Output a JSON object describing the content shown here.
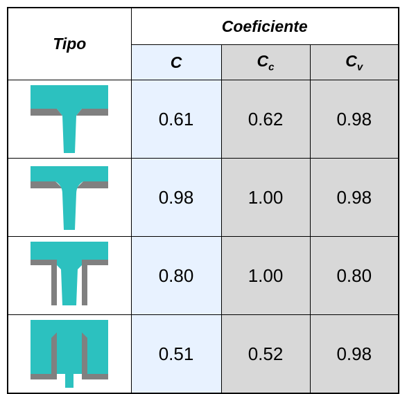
{
  "table": {
    "tipo_header": "Tipo",
    "coef_header": "Coeficiente",
    "sub_c": "C",
    "sub_cc_base": "C",
    "sub_cc_sub": "c",
    "sub_cv_base": "C",
    "sub_cv_sub": "v",
    "rows": [
      {
        "icon": "orifice-sharp-edge-icon",
        "c": "0.61",
        "cc": "0.62",
        "cv": "0.98"
      },
      {
        "icon": "orifice-rounded-edge-icon",
        "c": "0.98",
        "cc": "1.00",
        "cv": "0.98"
      },
      {
        "icon": "external-tube-nozzle-icon",
        "c": "0.80",
        "cc": "1.00",
        "cv": "0.80"
      },
      {
        "icon": "reentrant-tube-nozzle-icon",
        "c": "0.51",
        "cc": "0.52",
        "cv": "0.98"
      }
    ]
  },
  "colors": {
    "fluid": "#2cc1bf",
    "wall": "#808080",
    "col_c_bg": "#e8f2ff",
    "col_gray_bg": "#d8d8d8"
  }
}
